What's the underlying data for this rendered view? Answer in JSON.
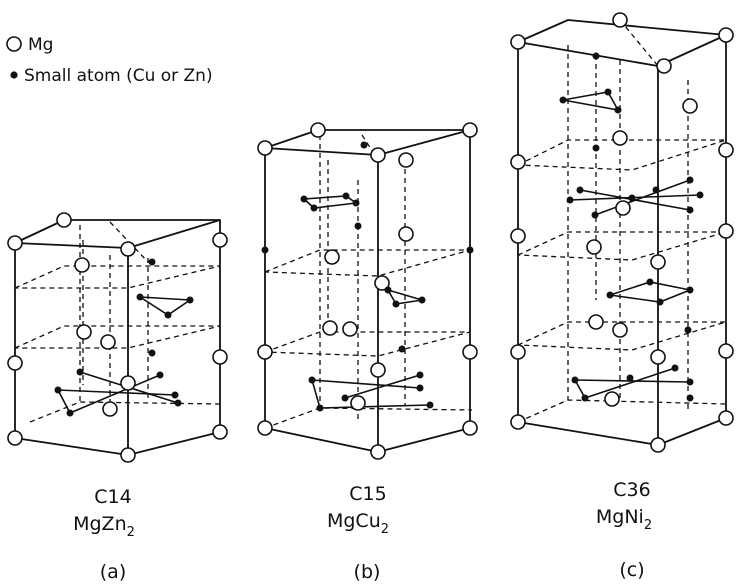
{
  "legend": {
    "large_atom": "Mg",
    "small_atom": "Small atom (Cu or Zn)"
  },
  "structures": [
    {
      "type": "C14",
      "formula_base": "MgZn",
      "formula_sub": "2",
      "tag": "(a)"
    },
    {
      "type": "C15",
      "formula_base": "MgCu",
      "formula_sub": "2",
      "tag": "(b)"
    },
    {
      "type": "C36",
      "formula_base": "MgNi",
      "formula_sub": "2",
      "tag": "(c)"
    }
  ],
  "icons": {
    "large_atom": "open-circle-icon",
    "small_atom": "filled-dot-icon"
  },
  "colors": {
    "ink": "#111111",
    "paper": "#ffffff"
  }
}
